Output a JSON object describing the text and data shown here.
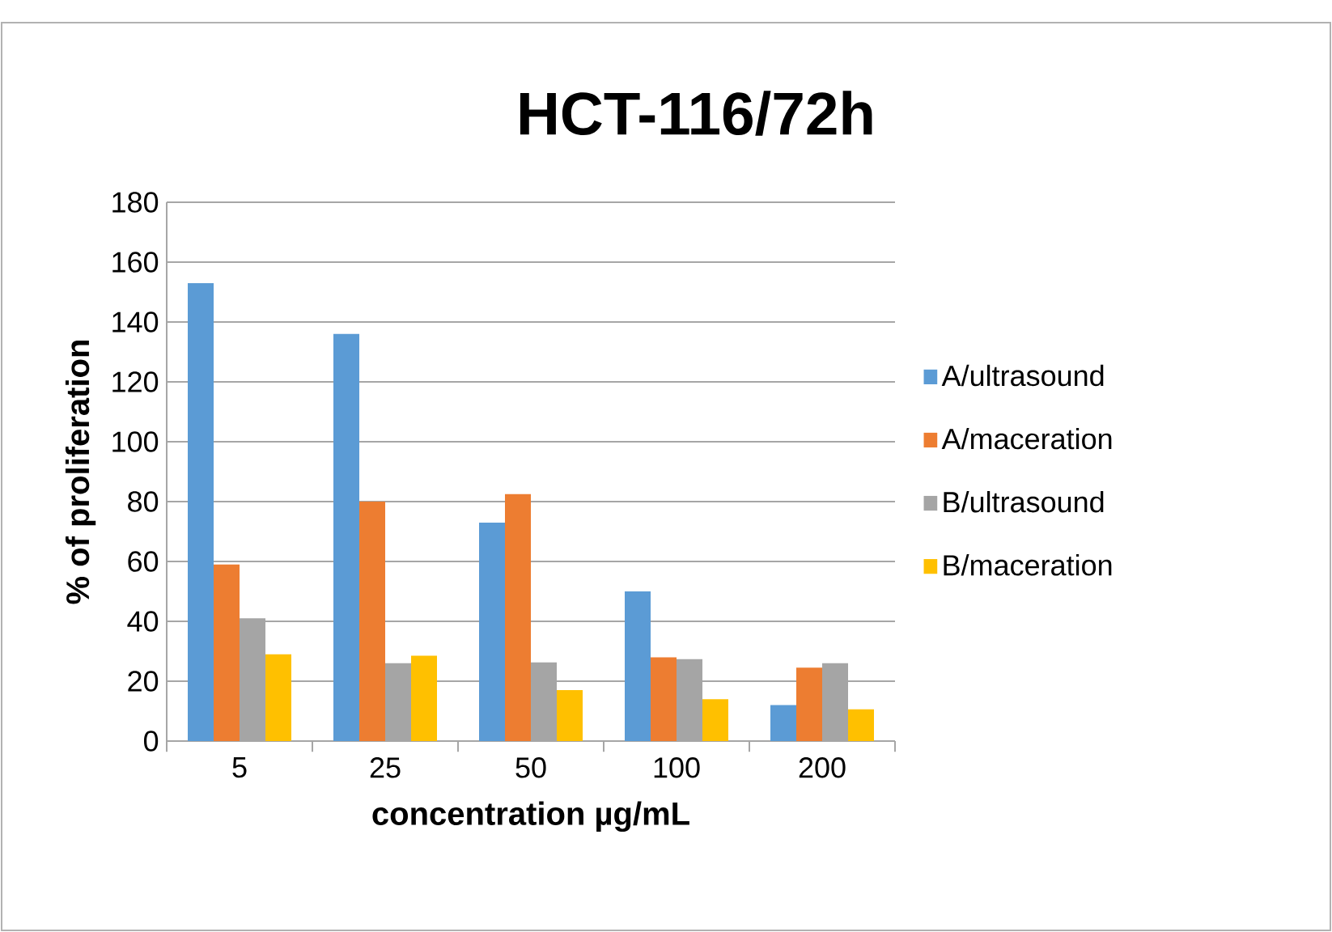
{
  "chart_data": {
    "type": "bar",
    "title": "HCT-116/72h",
    "xlabel": "concentration µg/mL",
    "ylabel": "% of proliferation",
    "categories": [
      "5",
      "25",
      "50",
      "100",
      "200"
    ],
    "series": [
      {
        "name": "A/ultrasound",
        "color": "#5b9bd5",
        "values": [
          153,
          136,
          73,
          50,
          12
        ]
      },
      {
        "name": "A/maceration",
        "color": "#ed7d31",
        "values": [
          59,
          80,
          82.5,
          28,
          24.5
        ]
      },
      {
        "name": "B/ultrasound",
        "color": "#a5a5a5",
        "values": [
          41,
          26,
          26.3,
          27.4,
          26
        ]
      },
      {
        "name": "B/maceration",
        "color": "#ffc000",
        "values": [
          29,
          28.5,
          17,
          14,
          10.6
        ]
      }
    ],
    "ylim": [
      0,
      180
    ],
    "yticks": [
      0,
      20,
      40,
      60,
      80,
      100,
      120,
      140,
      160,
      180
    ],
    "grid": "y",
    "legend": "right"
  }
}
